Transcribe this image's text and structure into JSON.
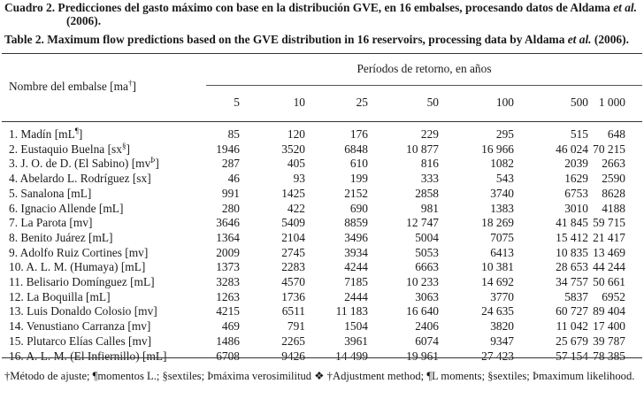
{
  "caption": {
    "es_line1": "Cuadro 2. Predicciones del gasto máximo con base en la distribución GVE, en 16 embalses, procesando datos de Aldama",
    "es_italic": "et al.",
    "es_line2": "(2006).",
    "en_pre": "Table 2. Maximum flow predictions based on the GVE distribution in 16 reservoirs, processing data by Aldama ",
    "en_italic": "et al.",
    "en_post": " (2006)."
  },
  "table": {
    "name_header": "Nombre del embalse [ma",
    "name_header_sup": "†",
    "name_header_close": "]",
    "group_header": "Períodos de retorno, en años",
    "periods": [
      "5",
      "10",
      "25",
      "50",
      "100",
      "500",
      "1 000"
    ],
    "rows": [
      {
        "name": "1. Madín [mL",
        "sup": "¶",
        "close": "]",
        "values": [
          "85",
          "120",
          "176",
          "229",
          "295",
          "515",
          "648"
        ]
      },
      {
        "name": "2. Eustaquio Buelna [sx",
        "sup": "§",
        "close": "]",
        "values": [
          "1946",
          "3520",
          "6848",
          "10 877",
          "16 966",
          "46 024",
          "70 215"
        ]
      },
      {
        "name": "3. J. O. de D. (El Sabino) [mv",
        "sup": "Þ",
        "close": "]",
        "values": [
          "287",
          "405",
          "610",
          "816",
          "1082",
          "2039",
          "2663"
        ]
      },
      {
        "name": "4. Abelardo L. Rodríguez [sx]",
        "sup": "",
        "close": "",
        "values": [
          "46",
          "93",
          "199",
          "333",
          "543",
          "1629",
          "2590"
        ]
      },
      {
        "name": "5. Sanalona [mL]",
        "sup": "",
        "close": "",
        "values": [
          "991",
          "1425",
          "2152",
          "2858",
          "3740",
          "6753",
          "8628"
        ]
      },
      {
        "name": "6. Ignacio Allende [mL]",
        "sup": "",
        "close": "",
        "values": [
          "280",
          "422",
          "690",
          "981",
          "1383",
          "3010",
          "4188"
        ]
      },
      {
        "name": "7. La Parota [mv]",
        "sup": "",
        "close": "",
        "values": [
          "3646",
          "5409",
          "8859",
          "12 747",
          "18 269",
          "41 845",
          "59 715"
        ]
      },
      {
        "name": "8. Benito Juárez [mL]",
        "sup": "",
        "close": "",
        "values": [
          "1364",
          "2104",
          "3496",
          "5004",
          "7075",
          "15 412",
          "21 417"
        ]
      },
      {
        "name": "9. Adolfo Ruiz Cortines [mv]",
        "sup": "",
        "close": "",
        "values": [
          "2009",
          "2745",
          "3934",
          "5053",
          "6413",
          "10 835",
          "13 469"
        ]
      },
      {
        "name": "10. A. L. M. (Humaya) [mL]",
        "sup": "",
        "close": "",
        "values": [
          "1373",
          "2283",
          "4244",
          "6663",
          "10 381",
          "28 653",
          "44 244"
        ]
      },
      {
        "name": "11. Belisario Domínguez [mL]",
        "sup": "",
        "close": "",
        "values": [
          "3283",
          "4570",
          "7185",
          "10 233",
          "14 692",
          "34 757",
          "50 661"
        ]
      },
      {
        "name": "12. La Boquilla [mL]",
        "sup": "",
        "close": "",
        "values": [
          "1263",
          "1736",
          "2444",
          "3063",
          "3770",
          "5837",
          "6952"
        ]
      },
      {
        "name": "13. Luis Donaldo Colosio [mv]",
        "sup": "",
        "close": "",
        "values": [
          "4215",
          "6511",
          "11 183",
          "16 640",
          "24 635",
          "60 727",
          "89 404"
        ]
      },
      {
        "name": "14. Venustiano Carranza [mv]",
        "sup": "",
        "close": "",
        "values": [
          "469",
          "791",
          "1504",
          "2406",
          "3820",
          "11 042",
          "17 400"
        ]
      },
      {
        "name": "15. Plutarco Elías Calles [mv]",
        "sup": "",
        "close": "",
        "values": [
          "1486",
          "2265",
          "3961",
          "6074",
          "9347",
          "25 679",
          "39 787"
        ]
      },
      {
        "name": "16. A. L. M. (El Infiernillo) [mL]",
        "sup": "",
        "close": "",
        "values": [
          "6708",
          "9426",
          "14 499",
          "19 961",
          "27 423",
          "57 154",
          "78 385"
        ]
      }
    ]
  },
  "footnote": {
    "text": "†Método de ajuste; ¶momentos L.; §sextiles; Þmáxima verosimilitud ❖ †Adjustment method; ¶L moments; §sextiles; Þmaximum likelihood."
  }
}
